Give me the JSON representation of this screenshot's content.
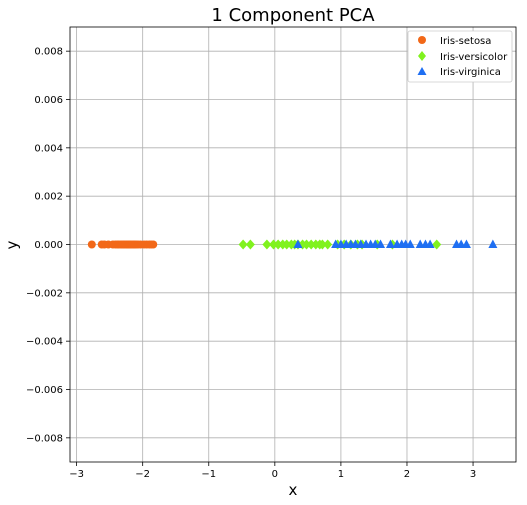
{
  "chart_data": {
    "type": "scatter",
    "title": "1 Component PCA",
    "xlabel": "x",
    "ylabel": "y",
    "xlim": [
      -3.1,
      3.65
    ],
    "ylim": [
      -0.009,
      0.009
    ],
    "xticks": [
      -3,
      -2,
      -1,
      0,
      1,
      2,
      3
    ],
    "yticks": [
      -0.008,
      -0.006,
      -0.004,
      -0.002,
      0.0,
      0.002,
      0.004,
      0.006,
      0.008
    ],
    "ytick_labels": [
      "−0.008",
      "−0.006",
      "−0.004",
      "−0.002",
      "0.000",
      "0.002",
      "0.004",
      "0.006",
      "0.008"
    ],
    "xtick_labels": [
      "−3",
      "−2",
      "−1",
      "0",
      "1",
      "2",
      "3"
    ],
    "grid": true,
    "legend_position": "top-right",
    "series": [
      {
        "name": "Iris-setosa",
        "marker": "circle",
        "color": "#f26818",
        "x": [
          -2.77,
          -2.62,
          -2.58,
          -2.52,
          -2.45,
          -2.41,
          -2.38,
          -2.36,
          -2.33,
          -2.31,
          -2.29,
          -2.27,
          -2.25,
          -2.23,
          -2.21,
          -2.2,
          -2.18,
          -2.16,
          -2.14,
          -2.12,
          -2.1,
          -2.07,
          -2.03,
          -1.98,
          -1.94,
          -1.9,
          -1.87,
          -1.84
        ],
        "y": [
          0,
          0,
          0,
          0,
          0,
          0,
          0,
          0,
          0,
          0,
          0,
          0,
          0,
          0,
          0,
          0,
          0,
          0,
          0,
          0,
          0,
          0,
          0,
          0,
          0,
          0,
          0,
          0
        ]
      },
      {
        "name": "Iris-versicolor",
        "marker": "diamond",
        "color": "#80f21e",
        "x": [
          -0.48,
          -0.37,
          -0.12,
          -0.02,
          0.05,
          0.12,
          0.18,
          0.25,
          0.3,
          0.35,
          0.42,
          0.48,
          0.55,
          0.62,
          0.68,
          0.72,
          0.8,
          0.95,
          1.05,
          1.15,
          1.25,
          1.32,
          1.55,
          1.78,
          2.45
        ],
        "y": [
          0,
          0,
          0,
          0,
          0,
          0,
          0,
          0,
          0,
          0,
          0,
          0,
          0,
          0,
          0,
          0,
          0,
          0,
          0,
          0,
          0,
          0,
          0,
          0,
          0
        ]
      },
      {
        "name": "Iris-virginica",
        "marker": "triangle",
        "color": "#1f6ff2",
        "x": [
          0.35,
          0.92,
          1.0,
          1.08,
          1.15,
          1.22,
          1.3,
          1.38,
          1.45,
          1.52,
          1.6,
          1.75,
          1.85,
          1.92,
          1.98,
          2.05,
          2.2,
          2.28,
          2.35,
          2.75,
          2.82,
          2.9,
          3.3
        ],
        "y": [
          0,
          0,
          0,
          0,
          0,
          0,
          0,
          0,
          0,
          0,
          0,
          0,
          0,
          0,
          0,
          0,
          0,
          0,
          0,
          0,
          0,
          0,
          0
        ]
      }
    ]
  }
}
